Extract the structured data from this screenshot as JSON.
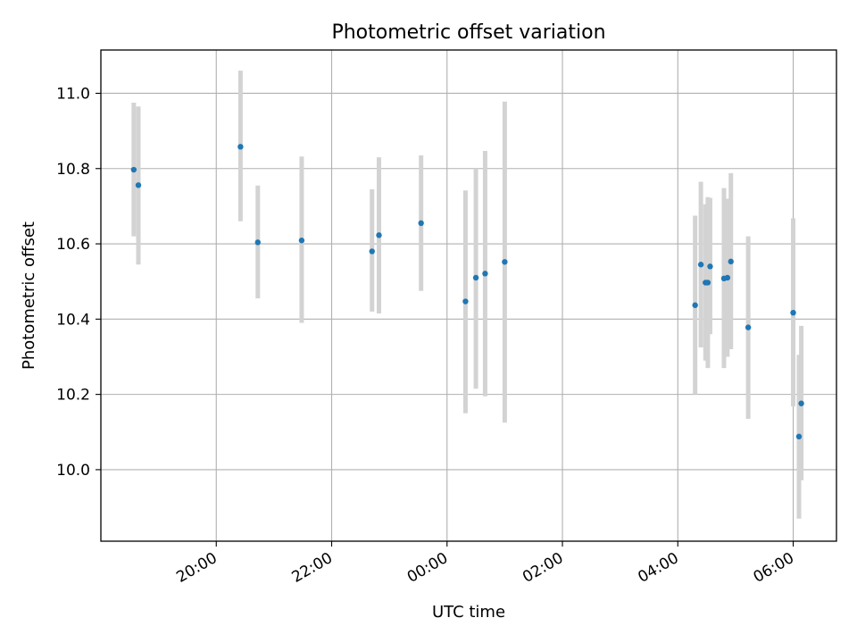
{
  "chart_data": {
    "type": "scatter",
    "title": "Photometric offset variation",
    "xlabel": "UTC time",
    "ylabel": "Photometric offset",
    "x_unit": "hours",
    "xlim": [
      18.0,
      30.75
    ],
    "ylim": [
      9.81,
      11.115
    ],
    "grid": true,
    "x_ticks": [
      {
        "value": 20,
        "label": "20:00"
      },
      {
        "value": 22,
        "label": "22:00"
      },
      {
        "value": 24,
        "label": "00:00"
      },
      {
        "value": 26,
        "label": "02:00"
      },
      {
        "value": 28,
        "label": "04:00"
      },
      {
        "value": 30,
        "label": "06:00"
      }
    ],
    "y_ticks": [
      {
        "value": 10.0,
        "label": "10.0"
      },
      {
        "value": 10.2,
        "label": "10.2"
      },
      {
        "value": 10.4,
        "label": "10.4"
      },
      {
        "value": 10.6,
        "label": "10.6"
      },
      {
        "value": 10.8,
        "label": "10.8"
      },
      {
        "value": 11.0,
        "label": "11.0"
      }
    ],
    "point_color": "#1f77b4",
    "errorbar_color": "#d3d3d3",
    "points": [
      {
        "x": 18.57,
        "y": 10.797,
        "lo": 10.62,
        "hi": 10.975
      },
      {
        "x": 18.65,
        "y": 10.756,
        "lo": 10.545,
        "hi": 10.965
      },
      {
        "x": 20.42,
        "y": 10.858,
        "lo": 10.66,
        "hi": 11.06
      },
      {
        "x": 20.72,
        "y": 10.604,
        "lo": 10.455,
        "hi": 10.755
      },
      {
        "x": 21.48,
        "y": 10.609,
        "lo": 10.39,
        "hi": 10.832
      },
      {
        "x": 22.7,
        "y": 10.58,
        "lo": 10.42,
        "hi": 10.745
      },
      {
        "x": 22.82,
        "y": 10.623,
        "lo": 10.415,
        "hi": 10.83
      },
      {
        "x": 23.55,
        "y": 10.655,
        "lo": 10.475,
        "hi": 10.835
      },
      {
        "x": 24.32,
        "y": 10.447,
        "lo": 10.15,
        "hi": 10.742
      },
      {
        "x": 24.5,
        "y": 10.51,
        "lo": 10.215,
        "hi": 10.8
      },
      {
        "x": 24.66,
        "y": 10.521,
        "lo": 10.195,
        "hi": 10.847
      },
      {
        "x": 25.0,
        "y": 10.552,
        "lo": 10.125,
        "hi": 10.978
      },
      {
        "x": 28.3,
        "y": 10.437,
        "lo": 10.2,
        "hi": 10.675
      },
      {
        "x": 28.4,
        "y": 10.545,
        "lo": 10.325,
        "hi": 10.765
      },
      {
        "x": 28.48,
        "y": 10.497,
        "lo": 10.29,
        "hi": 10.705
      },
      {
        "x": 28.52,
        "y": 10.497,
        "lo": 10.27,
        "hi": 10.724
      },
      {
        "x": 28.56,
        "y": 10.54,
        "lo": 10.36,
        "hi": 10.722
      },
      {
        "x": 28.8,
        "y": 10.508,
        "lo": 10.27,
        "hi": 10.748
      },
      {
        "x": 28.86,
        "y": 10.51,
        "lo": 10.3,
        "hi": 10.72
      },
      {
        "x": 28.92,
        "y": 10.553,
        "lo": 10.32,
        "hi": 10.788
      },
      {
        "x": 29.22,
        "y": 10.378,
        "lo": 10.135,
        "hi": 10.62
      },
      {
        "x": 30.0,
        "y": 10.417,
        "lo": 10.168,
        "hi": 10.668
      },
      {
        "x": 30.1,
        "y": 10.088,
        "lo": 9.87,
        "hi": 10.305
      },
      {
        "x": 30.14,
        "y": 10.176,
        "lo": 9.972,
        "hi": 10.382
      }
    ]
  }
}
